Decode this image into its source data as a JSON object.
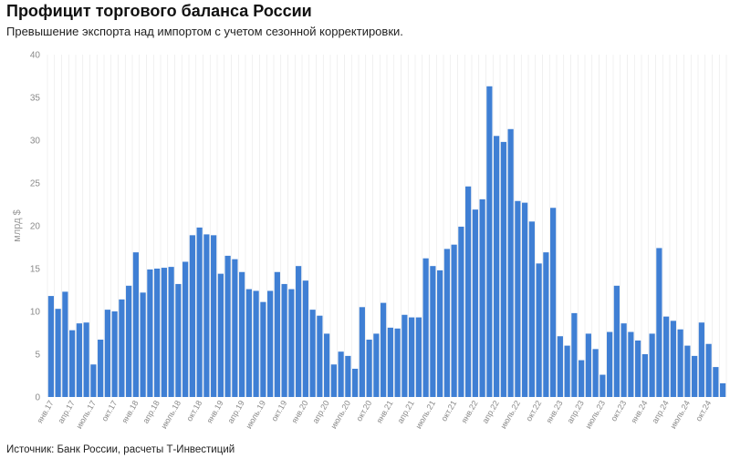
{
  "header": {
    "title": "Профицит торгового баланса России",
    "subtitle": "Превышение экспорта над импортом с учетом сезонной корректировки."
  },
  "footer": {
    "source": "Источник: Банк России, расчеты Т-Инвестиций"
  },
  "colors": {
    "bar": "#3f7fd4",
    "grid": "#e6e6e6",
    "axis_text": "#8a8a8a"
  },
  "chart_data": {
    "type": "bar",
    "ylabel": "млрд $",
    "ylim": [
      0,
      40
    ],
    "yticks": [
      0,
      5,
      10,
      15,
      20,
      25,
      30,
      35,
      40
    ],
    "grid": "vertical",
    "categories": [
      "янв.17",
      "фев.17",
      "мар.17",
      "апр.17",
      "май.17",
      "июнь.17",
      "июль.17",
      "авг.17",
      "сен.17",
      "окт.17",
      "ноя.17",
      "дек.17",
      "янв.18",
      "фев.18",
      "мар.18",
      "апр.18",
      "май.18",
      "июнь.18",
      "июль.18",
      "авг.18",
      "сен.18",
      "окт.18",
      "ноя.18",
      "дек.18",
      "янв.19",
      "фев.19",
      "мар.19",
      "апр.19",
      "май.19",
      "июнь.19",
      "июль.19",
      "авг.19",
      "сен.19",
      "окт.19",
      "ноя.19",
      "дек.19",
      "янв.20",
      "фев.20",
      "мар.20",
      "апр.20",
      "май.20",
      "июнь.20",
      "июль.20",
      "авг.20",
      "сен.20",
      "окт.20",
      "ноя.20",
      "дек.20",
      "янв.21",
      "фев.21",
      "мар.21",
      "апр.21",
      "май.21",
      "июнь.21",
      "июль.21",
      "авг.21",
      "сен.21",
      "окт.21",
      "ноя.21",
      "дек.21",
      "янв.22",
      "фев.22",
      "мар.22",
      "апр.22",
      "май.22",
      "июнь.22",
      "июль.22",
      "авг.22",
      "сен.22",
      "окт.22",
      "ноя.22",
      "дек.22",
      "янв.23",
      "фев.23",
      "мар.23",
      "апр.23",
      "май.23",
      "июнь.23",
      "июль.23",
      "авг.23",
      "сен.23",
      "окт.23",
      "ноя.23",
      "дек.23",
      "янв.24",
      "фев.24",
      "мар.24",
      "апр.24",
      "май.24",
      "июнь.24",
      "июль.24",
      "авг.24",
      "сен.24",
      "окт.24",
      "ноя.24",
      "дек.24"
    ],
    "values": [
      11.8,
      10.3,
      12.3,
      7.8,
      8.6,
      8.7,
      3.8,
      6.7,
      10.2,
      10.0,
      11.4,
      13.0,
      16.9,
      12.2,
      14.9,
      15.0,
      15.1,
      15.2,
      13.2,
      15.8,
      18.9,
      19.8,
      19.0,
      18.9,
      14.4,
      16.5,
      16.1,
      14.6,
      12.6,
      12.4,
      11.1,
      12.4,
      14.6,
      13.2,
      12.6,
      15.3,
      13.6,
      10.2,
      9.5,
      7.4,
      3.8,
      5.3,
      4.8,
      3.3,
      10.5,
      6.7,
      7.4,
      11.0,
      8.1,
      8.0,
      9.6,
      9.3,
      9.3,
      16.2,
      15.3,
      14.8,
      17.3,
      17.8,
      19.9,
      24.6,
      21.9,
      23.1,
      36.3,
      30.5,
      29.8,
      31.3,
      22.9,
      22.7,
      20.5,
      15.6,
      16.9,
      22.1,
      7.1,
      6.0,
      9.8,
      4.3,
      7.4,
      5.6,
      2.6,
      7.6,
      13.0,
      8.6,
      7.6,
      6.6,
      5.0,
      7.4,
      17.4,
      9.4,
      8.9,
      7.9,
      6.0,
      4.8,
      8.7,
      6.2,
      3.5,
      1.6
    ],
    "xticks": [
      "янв.17",
      "апр.17",
      "июль.17",
      "окт.17",
      "янв.18",
      "апр.18",
      "июль.18",
      "окт.18",
      "янв.19",
      "апр.19",
      "июль.19",
      "окт.19",
      "янв.20",
      "апр.20",
      "июль.20",
      "окт.20",
      "янв.21",
      "апр.21",
      "июль.21",
      "окт.21",
      "янв.22",
      "апр.22",
      "июль.22",
      "окт.22",
      "янв.23",
      "апр.23",
      "июль.23",
      "окт.23",
      "янв.24",
      "апр.24",
      "июль.24",
      "окт.24"
    ]
  }
}
